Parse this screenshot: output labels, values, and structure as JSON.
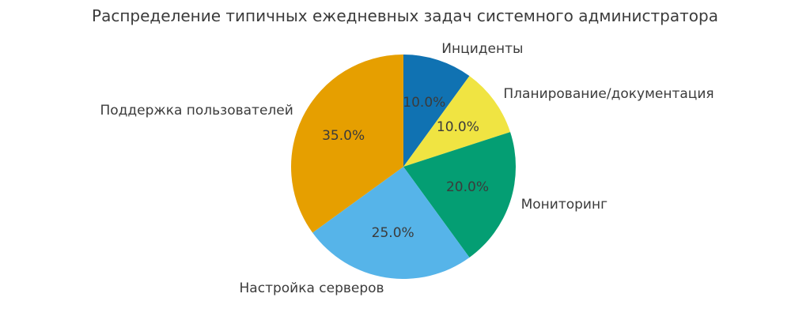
{
  "chart_data": {
    "type": "pie",
    "title": "Распределение типичных ежедневных задач системного администратора",
    "legend": "none",
    "background_color": "#ffffff",
    "text_color": "#3b3b3b",
    "start_angle": "12 o'clock, clockwise",
    "slices": [
      {
        "label": "Инциденты",
        "value": 10.0,
        "pct_label": "10.0%",
        "color": "#1072b2"
      },
      {
        "label": "Планирование/документация",
        "value": 10.0,
        "pct_label": "10.0%",
        "color": "#f0e442"
      },
      {
        "label": "Мониторинг",
        "value": 20.0,
        "pct_label": "20.0%",
        "color": "#049e73"
      },
      {
        "label": "Настройка серверов",
        "value": 25.0,
        "pct_label": "25.0%",
        "color": "#56b4e9"
      },
      {
        "label": "Поддержка пользователей",
        "value": 35.0,
        "pct_label": "35.0%",
        "color": "#e69f00"
      }
    ]
  }
}
